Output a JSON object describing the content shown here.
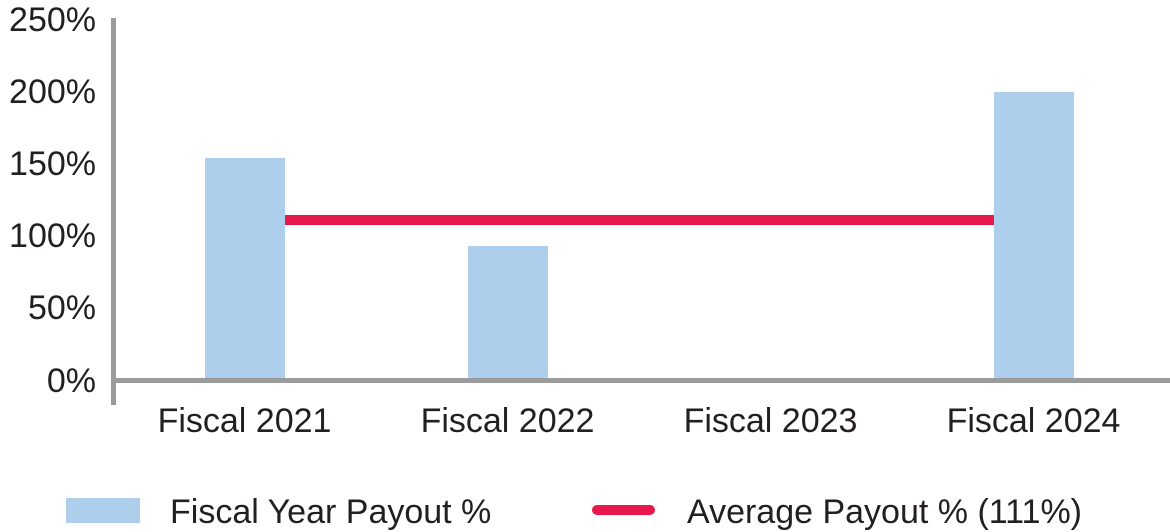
{
  "chart_data": {
    "type": "bar",
    "title": "",
    "xlabel": "",
    "ylabel": "",
    "categories": [
      "Fiscal 2021",
      "Fiscal 2022",
      "Fiscal 2023",
      "Fiscal 2024"
    ],
    "series": [
      {
        "name": "Fiscal Year Payout %",
        "type": "bar",
        "values": [
          154,
          93,
          0,
          200
        ]
      },
      {
        "name": "Average Payout % (111%)",
        "type": "line",
        "values": [
          111,
          111,
          111,
          111
        ]
      }
    ],
    "average_payout_pct": 111,
    "ylim": [
      0,
      250
    ],
    "yticks": {
      "labels": [
        "0%",
        "50%",
        "100%",
        "150%",
        "200%",
        "250%"
      ],
      "values": [
        0,
        50,
        100,
        150,
        200,
        250
      ]
    },
    "grid": false,
    "legend_position": "bottom"
  },
  "legend": {
    "bar_label": "Fiscal Year Payout %",
    "line_label": "Average Payout % (111%)"
  },
  "colors": {
    "bar": "#ADCFEC",
    "line": "#E6184C",
    "axis": "#9B9B9B",
    "text": "#231F20"
  }
}
